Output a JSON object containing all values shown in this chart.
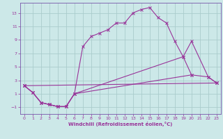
{
  "xlabel": "Windchill (Refroidissement éolien,°C)",
  "bg_color": "#cce8e8",
  "grid_color": "#aacccc",
  "line_color": "#993399",
  "spine_color": "#7755aa",
  "xlim": [
    -0.5,
    23.5
  ],
  "ylim": [
    -2,
    14.5
  ],
  "yticks": [
    -1,
    1,
    3,
    5,
    7,
    9,
    11,
    13
  ],
  "xticks": [
    0,
    1,
    2,
    3,
    4,
    5,
    6,
    7,
    8,
    9,
    10,
    11,
    12,
    13,
    14,
    15,
    16,
    17,
    18,
    19,
    20,
    21,
    22,
    23
  ],
  "series1_x": [
    0,
    1,
    2,
    3,
    4,
    5,
    6,
    7,
    8,
    9,
    10,
    11,
    12,
    13,
    14,
    15,
    16,
    17,
    18,
    19,
    20
  ],
  "series1_y": [
    2.2,
    1.2,
    -0.3,
    -0.6,
    -0.9,
    -0.9,
    1.0,
    8.0,
    9.5,
    10.0,
    10.5,
    11.5,
    11.5,
    13.0,
    13.5,
    13.8,
    12.3,
    11.5,
    8.8,
    6.5,
    3.8
  ],
  "series2_x": [
    0,
    1,
    2,
    3,
    4,
    5,
    6,
    19,
    20,
    21,
    22,
    23
  ],
  "series2_y": [
    2.2,
    1.2,
    -0.3,
    -0.6,
    -0.9,
    -0.9,
    1.0,
    6.5,
    8.8,
    null,
    3.5,
    2.6
  ],
  "series3_x": [
    0,
    23
  ],
  "series3_y": [
    2.2,
    2.6
  ],
  "series4_x": [
    0,
    1,
    2,
    3,
    4,
    5,
    6,
    20,
    21,
    22,
    23
  ],
  "series4_y": [
    2.2,
    1.2,
    -0.3,
    -0.6,
    -0.9,
    -0.9,
    1.0,
    3.8,
    null,
    3.5,
    2.6
  ]
}
